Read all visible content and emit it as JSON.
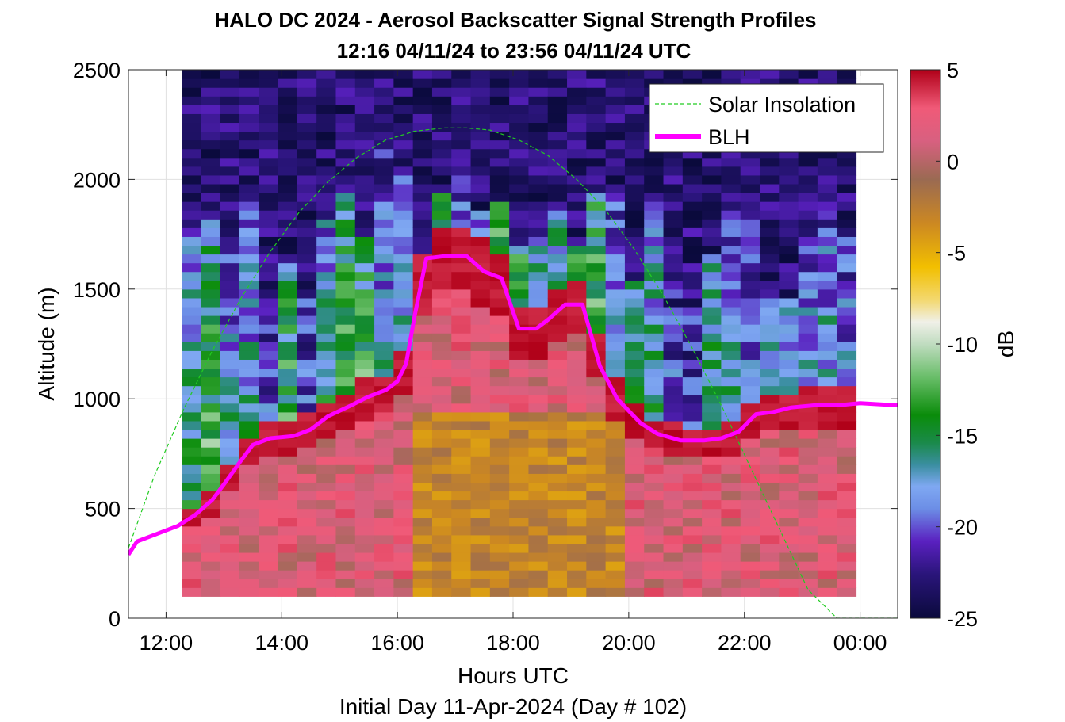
{
  "chart_data": {
    "type": "heatmap",
    "title": "HALO DC 2024 - Aerosol Backscatter Signal Strength Profiles",
    "subtitle": "12:16 04/11/24 to 23:56 04/11/24  UTC",
    "xlabel": "Hours UTC",
    "xlabel2": "Initial Day 11-Apr-2024 (Day # 102)",
    "ylabel": "Altitude (m)",
    "colorbar_label": "dB",
    "xlim": [
      11.35,
      24.65
    ],
    "ylim": [
      0,
      2500
    ],
    "clim": [
      -25,
      5
    ],
    "x_ticks": [
      12,
      14,
      16,
      18,
      20,
      22,
      24
    ],
    "x_tick_labels": [
      "12:00",
      "14:00",
      "16:00",
      "18:00",
      "20:00",
      "22:00",
      "00:00"
    ],
    "y_ticks": [
      0,
      500,
      1000,
      1500,
      2000,
      2500
    ],
    "y_tick_labels": [
      "0",
      "500",
      "1000",
      "1500",
      "2000",
      "2500"
    ],
    "colorbar_ticks": [
      5,
      0,
      -5,
      -10,
      -15,
      -20,
      -25
    ],
    "colorbar_tick_labels": [
      "5",
      "0",
      "-5",
      "-10",
      "-15",
      "-20",
      "-25"
    ],
    "grid": true,
    "legend_position": "top-right",
    "heatmap_extent": {
      "x": [
        12.27,
        23.93
      ],
      "y": [
        100,
        2500
      ],
      "columns": 35,
      "rows": 60
    },
    "series": [
      {
        "name": "Solar Insolation",
        "type": "line",
        "style": "dashed",
        "color": "#22cc22",
        "x": [
          11.35,
          11.8,
          12.3,
          12.8,
          13.3,
          13.8,
          14.3,
          14.8,
          15.3,
          15.8,
          16.3,
          16.8,
          17.2,
          17.6,
          18.1,
          18.6,
          19.1,
          19.6,
          20.1,
          20.6,
          21.1,
          21.6,
          22.1,
          22.6,
          23.1,
          23.6,
          23.85,
          24.65
        ],
        "y": [
          320,
          650,
          950,
          1220,
          1460,
          1670,
          1850,
          1990,
          2100,
          2180,
          2220,
          2235,
          2235,
          2225,
          2180,
          2110,
          2000,
          1860,
          1680,
          1470,
          1230,
          970,
          690,
          410,
          130,
          0,
          0,
          0
        ]
      },
      {
        "name": "BLH",
        "type": "line",
        "style": "solid",
        "color": "#ff00ff",
        "x": [
          11.35,
          11.5,
          11.8,
          12.2,
          12.5,
          12.8,
          13.0,
          13.3,
          13.5,
          13.8,
          14.2,
          14.5,
          14.8,
          15.2,
          15.5,
          15.8,
          16.0,
          16.15,
          16.3,
          16.5,
          16.8,
          17.2,
          17.5,
          17.8,
          18.1,
          18.4,
          18.6,
          18.9,
          19.2,
          19.5,
          19.8,
          20.2,
          20.5,
          20.9,
          21.3,
          21.6,
          21.9,
          22.2,
          22.5,
          22.8,
          23.2,
          23.6,
          24.0,
          24.65
        ],
        "y": [
          290,
          350,
          380,
          420,
          470,
          540,
          610,
          720,
          790,
          820,
          830,
          860,
          920,
          970,
          1010,
          1040,
          1080,
          1160,
          1380,
          1640,
          1650,
          1650,
          1580,
          1550,
          1320,
          1320,
          1360,
          1430,
          1430,
          1150,
          1000,
          890,
          840,
          810,
          810,
          820,
          850,
          930,
          940,
          960,
          970,
          970,
          980,
          970
        ]
      }
    ]
  }
}
